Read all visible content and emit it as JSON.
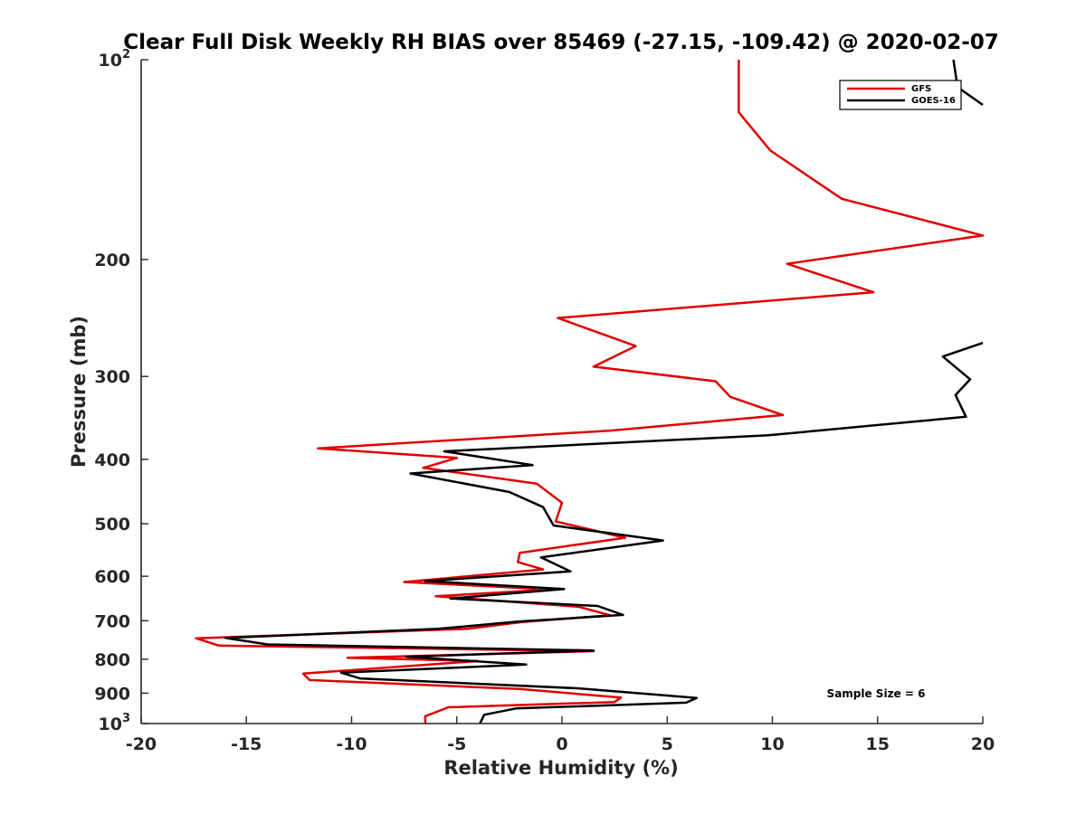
{
  "chart_data": {
    "type": "line",
    "title": "Clear Full Disk Weekly RH BIAS over 85469 (-27.15, -109.42) @ 2020-02-07",
    "xlabel": "Relative Humidity (%)",
    "ylabel": "Pressure (mb)",
    "xlim": [
      -20,
      20
    ],
    "ylim": [
      1000,
      100
    ],
    "y_scale": "log",
    "y_reversed": true,
    "grid": false,
    "legend_position": "top-right",
    "x_ticks": [
      -20,
      -15,
      -10,
      -5,
      0,
      5,
      10,
      15,
      20
    ],
    "y_ticks": [
      {
        "value": 100,
        "base": "10",
        "exp": "2"
      },
      {
        "value": 200,
        "label": "200"
      },
      {
        "value": 300,
        "label": "300"
      },
      {
        "value": 400,
        "label": "400"
      },
      {
        "value": 500,
        "label": "500"
      },
      {
        "value": 600,
        "label": "600"
      },
      {
        "value": 700,
        "label": "700"
      },
      {
        "value": 800,
        "label": "800"
      },
      {
        "value": 900,
        "label": "900"
      },
      {
        "value": 1000,
        "base": "10",
        "exp": "3"
      }
    ],
    "annotation": "Sample Size = 6",
    "series": [
      {
        "name": "GFS",
        "color": "#e00000",
        "points": [
          [
            8.4,
            100
          ],
          [
            8.4,
            120
          ],
          [
            9.9,
            137
          ],
          [
            13.3,
            162
          ],
          [
            20.0,
            184
          ],
          [
            10.7,
            203
          ],
          [
            14.8,
            224
          ],
          [
            -0.2,
            245
          ],
          [
            3.5,
            270
          ],
          [
            1.5,
            290
          ],
          [
            7.3,
            305
          ],
          [
            8.0,
            322
          ],
          [
            10.5,
            343
          ],
          [
            2.3,
            362
          ],
          [
            -11.6,
            385
          ],
          [
            -5.0,
            398
          ],
          [
            -6.6,
            412
          ],
          [
            -1.2,
            435
          ],
          [
            0.0,
            465
          ],
          [
            -0.3,
            496
          ],
          [
            3.0,
            525
          ],
          [
            -2.0,
            553
          ],
          [
            -2.1,
            571
          ],
          [
            -0.9,
            586
          ],
          [
            -7.5,
            612
          ],
          [
            -0.5,
            628
          ],
          [
            -6.0,
            643
          ],
          [
            0.8,
            667
          ],
          [
            2.3,
            687
          ],
          [
            -1.9,
            703
          ],
          [
            -4.5,
            720
          ],
          [
            -17.4,
            744
          ],
          [
            -16.3,
            763
          ],
          [
            1.5,
            778
          ],
          [
            -10.2,
            796
          ],
          [
            -4.0,
            805
          ],
          [
            -12.3,
            841
          ],
          [
            -12.0,
            860
          ],
          [
            -2.0,
            887
          ],
          [
            2.8,
            914
          ],
          [
            2.5,
            928
          ],
          [
            -5.4,
            945
          ],
          [
            -6.5,
            975
          ],
          [
            -6.5,
            1000
          ]
        ]
      },
      {
        "name": "GOES-16",
        "color": "#000000",
        "points": [
          [
            18.6,
            100
          ],
          [
            18.8,
            110
          ],
          [
            20.0,
            117
          ],
          [
            null,
            null
          ],
          [
            20.0,
            267
          ],
          [
            18.1,
            280
          ],
          [
            19.4,
            303
          ],
          [
            18.7,
            320
          ],
          [
            19.2,
            345
          ],
          [
            9.8,
            368
          ],
          [
            -5.6,
            389
          ],
          [
            -1.4,
            408
          ],
          [
            -7.2,
            420
          ],
          [
            -2.5,
            448
          ],
          [
            -0.9,
            472
          ],
          [
            -0.4,
            503
          ],
          [
            4.8,
            530
          ],
          [
            -1.0,
            562
          ],
          [
            0.4,
            590
          ],
          [
            -6.5,
            610
          ],
          [
            0.1,
            627
          ],
          [
            -5.3,
            648
          ],
          [
            1.7,
            665
          ],
          [
            2.9,
            686
          ],
          [
            -2.1,
            702
          ],
          [
            -5.9,
            720
          ],
          [
            -16.0,
            743
          ],
          [
            -14.0,
            760
          ],
          [
            1.5,
            776
          ],
          [
            -7.4,
            793
          ],
          [
            -1.7,
            815
          ],
          [
            -10.5,
            838
          ],
          [
            -9.6,
            855
          ],
          [
            0.8,
            885
          ],
          [
            6.4,
            915
          ],
          [
            5.9,
            930
          ],
          [
            -2.2,
            949
          ],
          [
            -3.7,
            970
          ],
          [
            -3.9,
            1000
          ]
        ]
      }
    ]
  }
}
